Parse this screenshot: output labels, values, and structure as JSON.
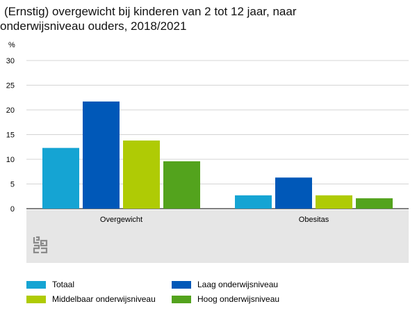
{
  "title_line1": "(Ernstig) overgewicht bij kinderen van 2 tot 12 jaar, naar",
  "title_line2": "onderwijsniveau ouders, 2018/2021",
  "unit_label": "%",
  "logo_icon": "cbs-logo-icon",
  "chart_data": {
    "type": "bar",
    "title": "(Ernstig) overgewicht bij kinderen van 2 tot 12 jaar, naar onderwijsniveau ouders, 2018/2021",
    "xlabel": "",
    "ylabel": "%",
    "ylim": [
      0,
      30
    ],
    "yticks": [
      0,
      5,
      10,
      15,
      20,
      25,
      30
    ],
    "grid": true,
    "legend_position": "bottom",
    "categories": [
      "Overgewicht",
      "Obesitas"
    ],
    "series": [
      {
        "name": "Totaal",
        "color": "#15A4D3",
        "values": [
          12.3,
          2.7
        ]
      },
      {
        "name": "Laag onderwijsniveau",
        "color": "#0058B8",
        "values": [
          21.7,
          6.3
        ]
      },
      {
        "name": "Middelbaar onderwijsniveau",
        "color": "#AFCB05",
        "values": [
          13.8,
          2.7
        ]
      },
      {
        "name": "Hoog onderwijsniveau",
        "color": "#53A31D",
        "values": [
          9.6,
          2.1
        ]
      }
    ]
  }
}
